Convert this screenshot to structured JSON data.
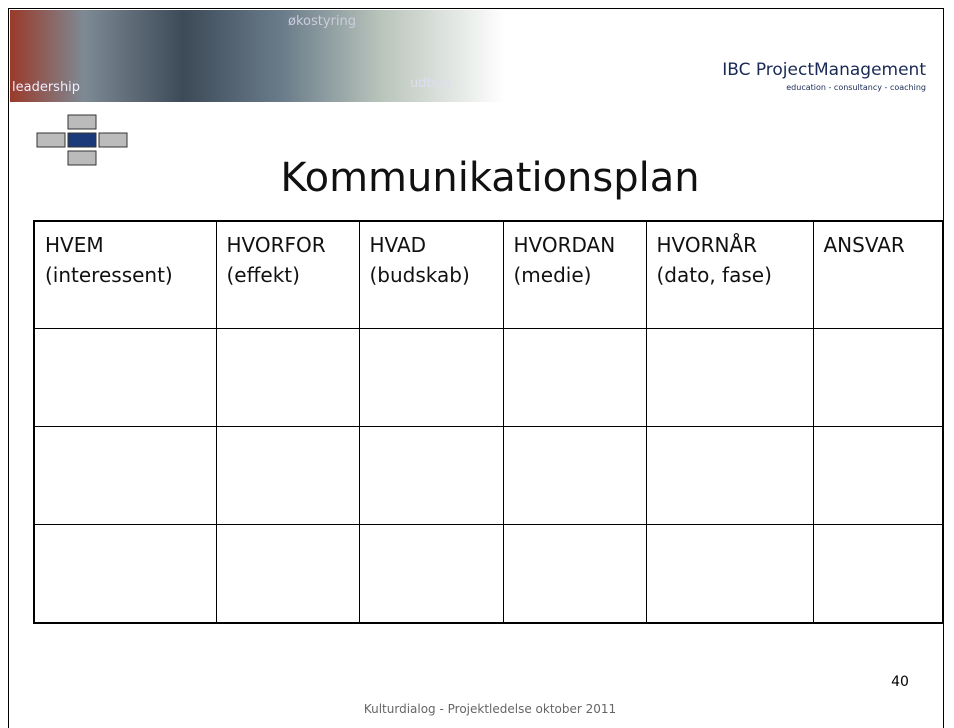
{
  "header": {
    "collage_words": [
      "leadership",
      "udbud",
      "økostyring"
    ],
    "logo": "IBC ProjectManagement",
    "tagline": "education - consultancy - coaching"
  },
  "title": "Kommunikationsplan",
  "table": {
    "columns": [
      [
        "HVEM",
        "(interessent)"
      ],
      [
        "HVORFOR",
        "(effekt)"
      ],
      [
        "HVAD",
        "(budskab)"
      ],
      [
        "HVORDAN",
        "(medie)"
      ],
      [
        "HVORNÅR",
        "(dato, fase)"
      ],
      [
        "ANSVAR"
      ]
    ]
  },
  "page_number": "40",
  "footer": "Kulturdialog - Projektledelse oktober 2011"
}
